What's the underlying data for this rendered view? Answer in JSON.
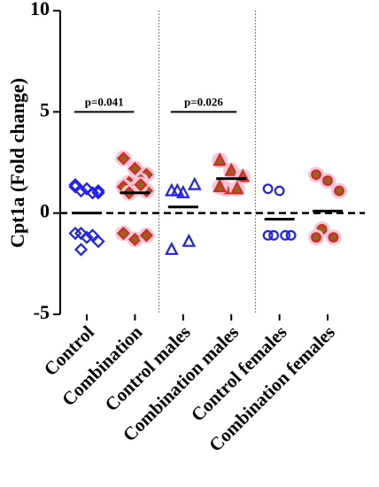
{
  "chart_data": {
    "type": "dot",
    "y_label": "Cpt1a (Fold change)",
    "categories": [
      "Control",
      "Combination",
      "Control males",
      "Combination males",
      "Control females",
      "Combination females"
    ],
    "values": [
      [
        1.4,
        1.2,
        1.1,
        1.1,
        1.0,
        1.3,
        1.2,
        1.0,
        -1.0,
        -1.1,
        -1.0,
        -1.2,
        -1.4,
        -1.8
      ],
      [
        2.7,
        2.2,
        1.9,
        1.5,
        1.6,
        1.3,
        1.2,
        1.1,
        1.0,
        1.4,
        -1.0,
        -1.3,
        -1.1
      ],
      [
        1.1,
        1.0,
        1.4,
        1.1,
        -1.4,
        -1.8
      ],
      [
        2.6,
        2.1,
        1.8,
        1.2,
        1.2,
        1.3
      ],
      [
        1.2,
        1.1,
        -1.1,
        -1.1,
        -1.1,
        -1.1
      ],
      [
        1.9,
        1.6,
        1.1,
        -0.8,
        -1.2,
        -1.2
      ]
    ],
    "means": [
      0.0,
      1.0,
      0.3,
      1.7,
      -0.3,
      0.1
    ],
    "markers": [
      "diamond",
      "diamond",
      "triangle",
      "triangle",
      "circle",
      "circle"
    ],
    "colors": [
      "#1f1fff",
      "#e02424",
      "#1f1fff",
      "#e02424",
      "#1f1fff",
      "#e02424"
    ],
    "ylim": [
      -5,
      10
    ],
    "yticks": [
      -5,
      0,
      5,
      10
    ],
    "reference_line": 0,
    "annotations": [
      {
        "text": "p=0.041",
        "from": 0,
        "to": 1,
        "y": 5
      },
      {
        "text": "p=0.026",
        "from": 2,
        "to": 3,
        "y": 5
      }
    ]
  }
}
